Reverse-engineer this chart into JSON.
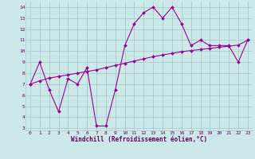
{
  "xlabel": "Windchill (Refroidissement éolien,°C)",
  "bg_color": "#cce8e8",
  "grid_color": "#aacccc",
  "line1_x": [
    0,
    1,
    2,
    3,
    4,
    5,
    6,
    7,
    8,
    9,
    10,
    11,
    12,
    13,
    14,
    15,
    16,
    17,
    18,
    19,
    20,
    21,
    22,
    23
  ],
  "line1_y": [
    7.0,
    9.0,
    6.5,
    4.5,
    7.5,
    7.0,
    8.5,
    3.2,
    3.2,
    6.5,
    10.5,
    12.5,
    13.5,
    14.0,
    13.0,
    14.0,
    12.5,
    10.5,
    11.0,
    10.5,
    10.5,
    10.5,
    9.0,
    11.0
  ],
  "line2_x": [
    0,
    1,
    2,
    3,
    4,
    5,
    6,
    7,
    8,
    9,
    10,
    11,
    12,
    13,
    14,
    15,
    16,
    17,
    18,
    19,
    20,
    21,
    22,
    23
  ],
  "line2_y": [
    7.0,
    7.3,
    7.55,
    7.7,
    7.85,
    8.0,
    8.15,
    8.3,
    8.5,
    8.7,
    8.9,
    9.1,
    9.3,
    9.5,
    9.65,
    9.8,
    9.95,
    10.05,
    10.15,
    10.25,
    10.35,
    10.45,
    10.55,
    11.0
  ],
  "line_color": "#990099",
  "marker": "D",
  "marker_size": 2,
  "xlim": [
    -0.5,
    23.5
  ],
  "ylim": [
    2.8,
    14.5
  ],
  "yticks": [
    3,
    4,
    5,
    6,
    7,
    8,
    9,
    10,
    11,
    12,
    13,
    14
  ],
  "xticks": [
    0,
    1,
    2,
    3,
    4,
    5,
    6,
    7,
    8,
    9,
    10,
    11,
    12,
    13,
    14,
    15,
    16,
    17,
    18,
    19,
    20,
    21,
    22,
    23
  ],
  "tick_fontsize": 4.5,
  "xlabel_fontsize": 5.5
}
